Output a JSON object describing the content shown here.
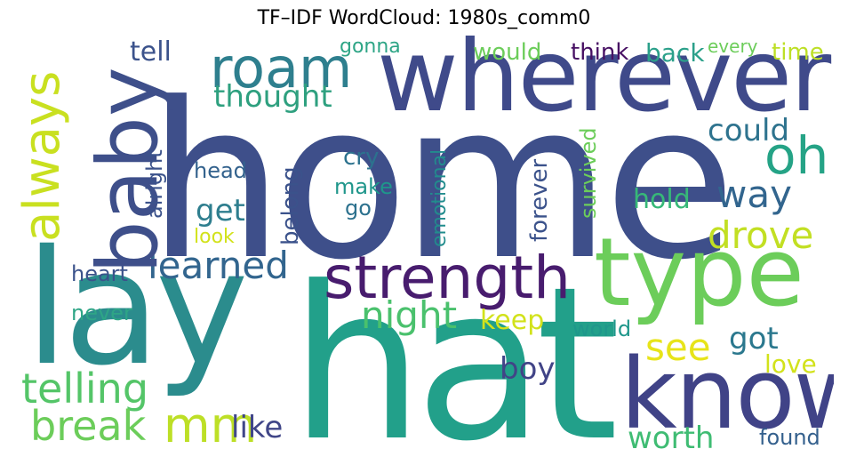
{
  "title": "TF–IDF WordCloud: 1980s_comm0",
  "words": [
    {
      "text": "home",
      "color": "#3e4f8a"
    },
    {
      "text": "hat",
      "color": "#22a08a"
    },
    {
      "text": "lay",
      "color": "#2b8c8d"
    },
    {
      "text": "wherever",
      "color": "#3f4a8a"
    },
    {
      "text": "type",
      "color": "#6ccd5a"
    },
    {
      "text": "know",
      "color": "#404387"
    },
    {
      "text": "baby",
      "color": "#3e4f8a"
    },
    {
      "text": "strength",
      "color": "#481c6e"
    },
    {
      "text": "roam",
      "color": "#2e7f8e"
    },
    {
      "text": "always",
      "color": "#c9e020"
    },
    {
      "text": "oh",
      "color": "#25a386"
    },
    {
      "text": "learned",
      "color": "#32658e"
    },
    {
      "text": "telling",
      "color": "#54c568"
    },
    {
      "text": "break",
      "color": "#6ccd5a"
    },
    {
      "text": "mm",
      "color": "#bddf26"
    },
    {
      "text": "night",
      "color": "#4ac16d"
    },
    {
      "text": "drove",
      "color": "#c2df23"
    },
    {
      "text": "way",
      "color": "#32658e"
    },
    {
      "text": "see",
      "color": "#e7e419"
    },
    {
      "text": "thought",
      "color": "#2ea07f"
    },
    {
      "text": "could",
      "color": "#2e738e"
    },
    {
      "text": "get",
      "color": "#2e7e8e"
    },
    {
      "text": "worth",
      "color": "#3fbc73"
    },
    {
      "text": "got",
      "color": "#2b788e"
    },
    {
      "text": "boy",
      "color": "#414487"
    },
    {
      "text": "like",
      "color": "#404688"
    },
    {
      "text": "keep",
      "color": "#d2e21b"
    },
    {
      "text": "hold",
      "color": "#37b878"
    },
    {
      "text": "tell",
      "color": "#3b528b"
    },
    {
      "text": "love",
      "color": "#d2e21b"
    },
    {
      "text": "found",
      "color": "#34608d"
    },
    {
      "text": "back",
      "color": "#2ba08a"
    },
    {
      "text": "think",
      "color": "#471063"
    },
    {
      "text": "would",
      "color": "#6ccd5a"
    },
    {
      "text": "time",
      "color": "#bddf26"
    },
    {
      "text": "every",
      "color": "#6ccd5a"
    },
    {
      "text": "gonna",
      "color": "#2ea586"
    },
    {
      "text": "cry",
      "color": "#2c728e"
    },
    {
      "text": "make",
      "color": "#1f968b"
    },
    {
      "text": "go",
      "color": "#2c718e"
    },
    {
      "text": "head",
      "color": "#33628d"
    },
    {
      "text": "heart",
      "color": "#3b528b"
    },
    {
      "text": "never",
      "color": "#2ea586"
    },
    {
      "text": "world",
      "color": "#1f978b"
    },
    {
      "text": "look",
      "color": "#d2e21b"
    },
    {
      "text": "alright",
      "color": "#3b528b"
    },
    {
      "text": "belong",
      "color": "#3b528b"
    },
    {
      "text": "emotional",
      "color": "#228c8d"
    },
    {
      "text": "forever",
      "color": "#3b528b"
    },
    {
      "text": "survived",
      "color": "#6ccd5a"
    }
  ]
}
